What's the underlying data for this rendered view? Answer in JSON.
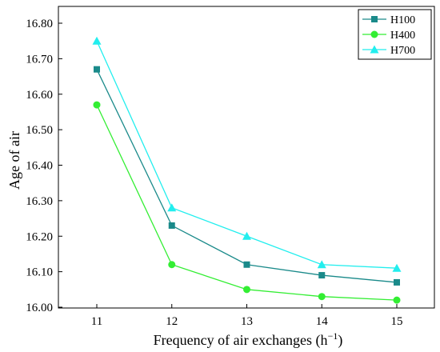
{
  "chart_data": {
    "type": "line",
    "xlabel": "Frequency of air exchanges (h",
    "xlabel_superscript": "−1",
    "xlabel_suffix": ")",
    "ylabel": "Age of air",
    "x": [
      11,
      12,
      13,
      14,
      15
    ],
    "x_tick_labels": [
      "11",
      "12",
      "13",
      "14",
      "15"
    ],
    "ylim": [
      16.0,
      16.8
    ],
    "y_ticks": [
      16.0,
      16.1,
      16.2,
      16.3,
      16.4,
      16.5,
      16.6,
      16.7,
      16.8
    ],
    "y_tick_labels": [
      "16.00",
      "16.10",
      "16.20",
      "16.30",
      "16.40",
      "16.50",
      "16.60",
      "16.70",
      "16.80"
    ],
    "grid": false,
    "legend_position": "top-right",
    "series": [
      {
        "name": "H100",
        "marker": "square",
        "color": "#1a8a8a",
        "values": [
          16.67,
          16.23,
          16.12,
          16.09,
          16.07
        ]
      },
      {
        "name": "H400",
        "marker": "circle",
        "color": "#33ee33",
        "values": [
          16.57,
          16.12,
          16.05,
          16.03,
          16.02
        ]
      },
      {
        "name": "H700",
        "marker": "triangle",
        "color": "#22eeee",
        "values": [
          16.75,
          16.28,
          16.2,
          16.12,
          16.11
        ]
      }
    ]
  }
}
